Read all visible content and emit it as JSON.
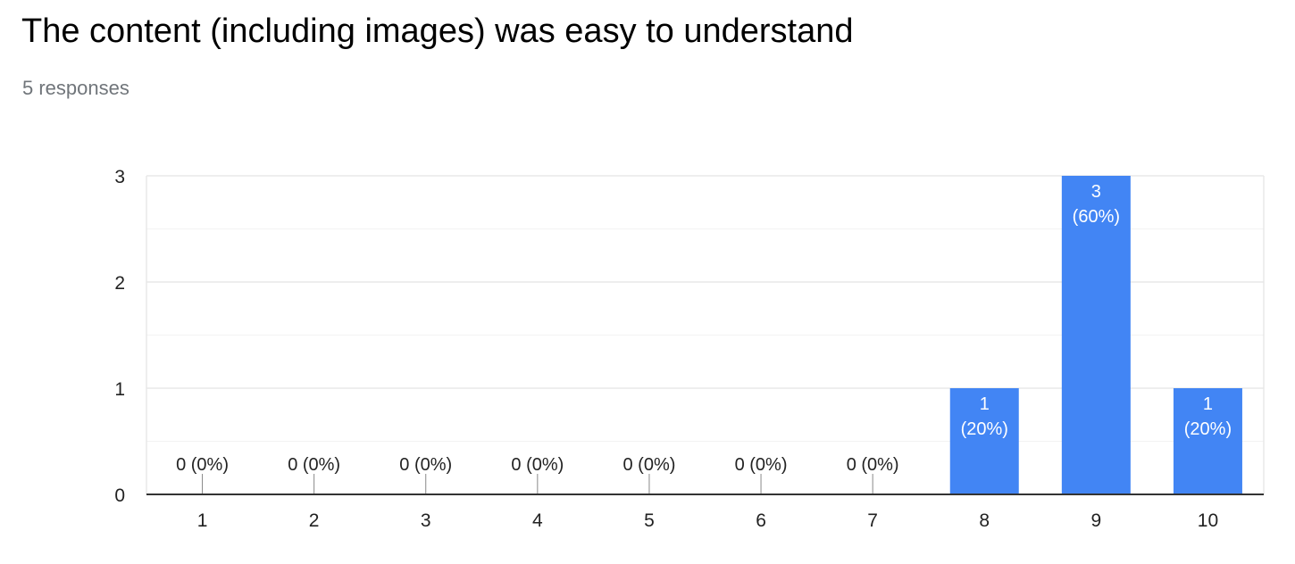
{
  "header": {
    "title": "The content (including images) was easy to understand",
    "subtitle": "5 responses"
  },
  "colors": {
    "bar": "#4285f4",
    "grid_major": "#e8e8e8",
    "grid_minor": "#f3f3f3",
    "axis": "#333333",
    "label_dark": "#222222",
    "label_light": "#ffffff"
  },
  "chart_data": {
    "type": "bar",
    "title": "The content (including images) was easy to understand",
    "categories": [
      "1",
      "2",
      "3",
      "4",
      "5",
      "6",
      "7",
      "8",
      "9",
      "10"
    ],
    "values": [
      0,
      0,
      0,
      0,
      0,
      0,
      0,
      1,
      3,
      1
    ],
    "percent_labels": [
      "0%",
      "0%",
      "0%",
      "0%",
      "0%",
      "0%",
      "0%",
      "20%",
      "60%",
      "20%"
    ],
    "data_labels": [
      "0 (0%)",
      "0 (0%)",
      "0 (0%)",
      "0 (0%)",
      "0 (0%)",
      "0 (0%)",
      "0 (0%)",
      "1 (20%)",
      "3 (60%)",
      "1 (20%)"
    ],
    "yticks": [
      "0",
      "1",
      "2",
      "3"
    ],
    "ylim": [
      0,
      3
    ],
    "xlabel": "",
    "ylabel": "",
    "grid": true,
    "legend": "none"
  }
}
